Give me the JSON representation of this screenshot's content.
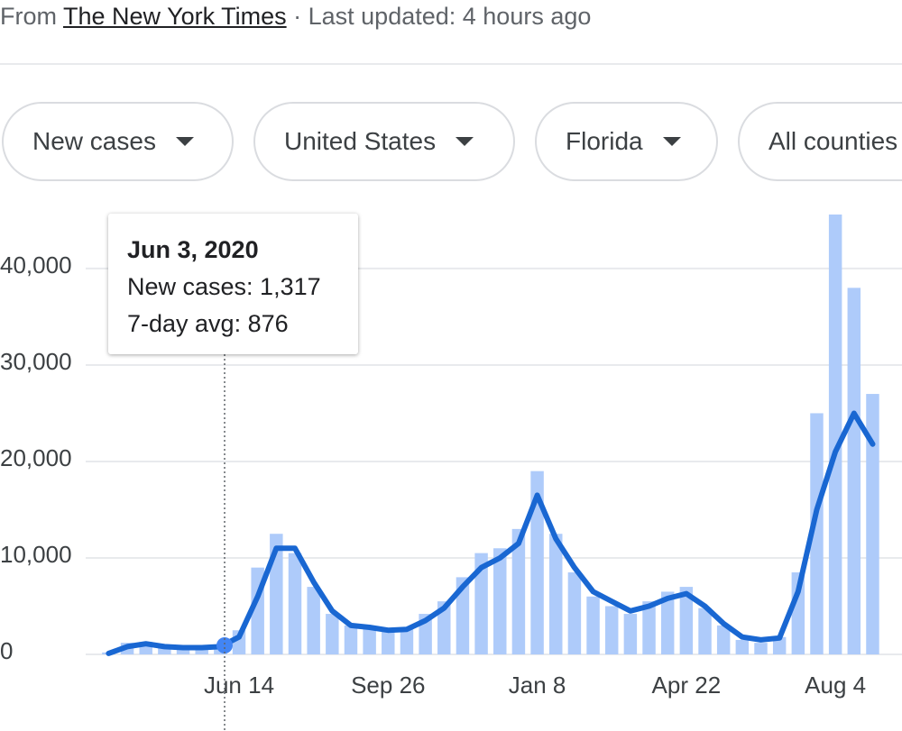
{
  "header": {
    "prefix": "From",
    "source": "The New York Times",
    "updated": "· Last updated: 4 hours ago"
  },
  "filters": [
    "New cases",
    "United States",
    "Florida",
    "All counties"
  ],
  "tooltip": {
    "date": "Jun 3, 2020",
    "cases": "New cases: 1,317",
    "avg": "7-day avg: 876"
  },
  "chart_data": {
    "type": "combo",
    "categories": [
      null,
      null,
      null,
      null,
      null,
      null,
      null,
      "Jun 14",
      null,
      null,
      null,
      null,
      null,
      null,
      null,
      "Sep 26",
      null,
      null,
      null,
      null,
      null,
      null,
      null,
      "Jan 8",
      null,
      null,
      null,
      null,
      null,
      null,
      null,
      "Apr 22",
      null,
      null,
      null,
      null,
      null,
      null,
      null,
      "Aug 4",
      null,
      null
    ],
    "series": [
      {
        "type": "bar",
        "color": "#aecbfa",
        "values": [
          200,
          1200,
          1300,
          900,
          800,
          800,
          1000,
          2500,
          9000,
          12500,
          10500,
          7000,
          4200,
          3000,
          2800,
          2600,
          2800,
          4200,
          5500,
          8000,
          10500,
          11000,
          13000,
          19000,
          12500,
          8500,
          6000,
          5000,
          4200,
          5500,
          6500,
          7000,
          4800,
          3000,
          1500,
          1200,
          1800,
          8500,
          25000,
          45600,
          38000,
          27000
        ]
      },
      {
        "type": "line",
        "color": "#1967d2",
        "values": [
          100,
          800,
          1100,
          800,
          700,
          700,
          800,
          1800,
          6000,
          11000,
          11000,
          7500,
          4500,
          3000,
          2800,
          2500,
          2600,
          3500,
          4800,
          7000,
          9000,
          10000,
          11500,
          16500,
          12000,
          9000,
          6500,
          5500,
          4500,
          5000,
          5800,
          6300,
          5000,
          3200,
          1800,
          1500,
          1700,
          6500,
          15000,
          21000,
          25000,
          21800
        ]
      }
    ],
    "ylim": [
      0,
      45600
    ],
    "yticks": [
      0,
      {
        "value": 10000,
        "label": "10,000"
      },
      {
        "value": 20000,
        "label": "20,000"
      },
      {
        "value": 30000,
        "label": "30,000"
      },
      {
        "value": 40000,
        "label": "40,000"
      }
    ],
    "grid": true
  }
}
